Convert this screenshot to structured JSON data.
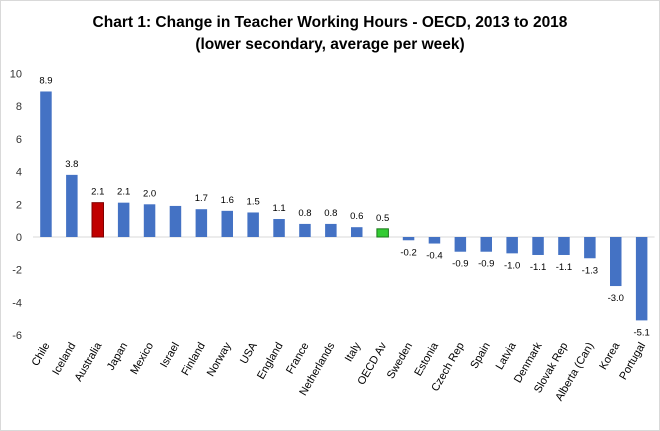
{
  "chart_data": {
    "type": "bar",
    "title": "Chart 1: Change in Teacher Working Hours - OECD, 2013 to 2018",
    "subtitle": "(lower secondary, average per week)",
    "categories": [
      "Chile",
      "Iceland",
      "Australia",
      "Japan",
      "Mexico",
      "Israel",
      "Finland",
      "Norway",
      "USA",
      "England",
      "France",
      "Netherlands",
      "Italy",
      "OECD Av",
      "Sweden",
      "Estonia",
      "Czech Rep",
      "Spain",
      "Latvia",
      "Denmark",
      "Slovak Rep",
      "Alberta (Can)",
      "Korea",
      "Portugal"
    ],
    "values": [
      8.9,
      3.8,
      2.1,
      2.1,
      2.0,
      1.9,
      1.7,
      1.6,
      1.5,
      1.1,
      0.8,
      0.8,
      0.6,
      0.5,
      -0.2,
      -0.4,
      -0.9,
      -0.9,
      -1.0,
      -1.1,
      -1.1,
      -1.3,
      -3.0,
      -5.1
    ],
    "data_labels": [
      "8.9",
      "3.8",
      "2.1",
      "2.1",
      "2.0",
      "",
      "1.7",
      "1.6",
      "1.5",
      "1.1",
      "0.8",
      "0.8",
      "0.6",
      "0.5",
      "-0.2",
      "-0.4",
      "-0.9",
      "-0.9",
      "-1.0",
      "-1.1",
      "-1.1",
      "-1.3",
      "-3.0",
      "-5.1"
    ],
    "ylim": [
      -6,
      10
    ],
    "yticks": [
      -6,
      -4,
      -2,
      0,
      2,
      4,
      6,
      8,
      10
    ],
    "grid": false,
    "legend": "none",
    "colors": {
      "default": "#4472c4",
      "highlight_Australia": "#c00000",
      "highlight_OECD_Av": "#33cc33"
    }
  }
}
